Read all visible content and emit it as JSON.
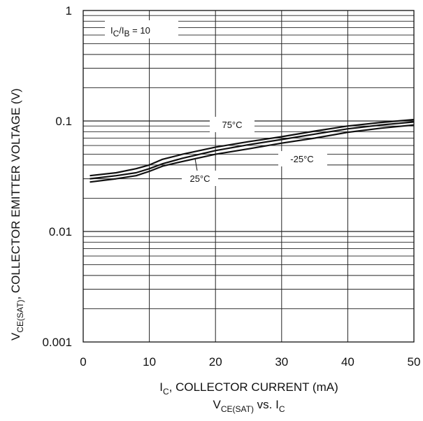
{
  "chart_data": {
    "type": "line",
    "xlim": [
      0,
      50
    ],
    "ylim": [
      0.001,
      1
    ],
    "yscale": "log",
    "grid": true,
    "x_ticks": [
      0,
      10,
      20,
      30,
      40,
      50
    ],
    "y_ticks": [
      0.001,
      0.01,
      0.1,
      1
    ],
    "x_tick_labels": [
      "0",
      "10",
      "20",
      "30",
      "40",
      "50"
    ],
    "y_tick_labels": [
      "0.001",
      "0.01",
      "0.1",
      "1"
    ],
    "xlabel": {
      "main": "I",
      "sub": "C",
      "rest": ", COLLECTOR CURRENT (mA)"
    },
    "ylabel": {
      "main": "V",
      "sub": "CE(SAT)",
      "rest": ", COLLECTOR EMITTER VOLTAGE (V)"
    },
    "caption": {
      "v": "V",
      "vsub": "CE(SAT)",
      "vs": " vs. I",
      "isub": "C"
    },
    "condition_label": {
      "i1": "I",
      "s1": "C",
      "slash": "/I",
      "s2": "B",
      "eq": " = 10"
    },
    "series": [
      {
        "name": "75°C",
        "x": [
          1,
          5,
          8,
          10,
          12,
          15,
          20,
          25,
          30,
          35,
          40,
          45,
          50
        ],
        "values": [
          0.032,
          0.034,
          0.037,
          0.04,
          0.045,
          0.05,
          0.058,
          0.065,
          0.072,
          0.081,
          0.09,
          0.097,
          0.103
        ]
      },
      {
        "name": "25°C",
        "x": [
          1,
          5,
          8,
          10,
          12,
          15,
          20,
          25,
          30,
          35,
          40,
          45,
          50
        ],
        "values": [
          0.03,
          0.032,
          0.034,
          0.037,
          0.041,
          0.046,
          0.054,
          0.061,
          0.068,
          0.076,
          0.085,
          0.092,
          0.098
        ]
      },
      {
        "name": "-25°C",
        "x": [
          1,
          5,
          8,
          10,
          12,
          15,
          20,
          25,
          30,
          35,
          40,
          45,
          50
        ],
        "values": [
          0.028,
          0.03,
          0.032,
          0.035,
          0.039,
          0.043,
          0.05,
          0.056,
          0.063,
          0.07,
          0.079,
          0.086,
          0.092
        ]
      }
    ]
  }
}
